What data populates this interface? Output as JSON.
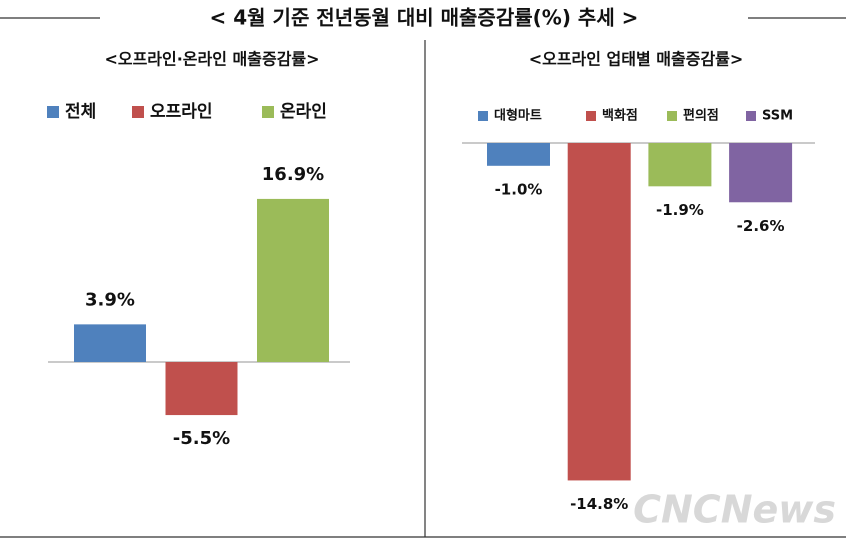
{
  "title": "< 4월 기준 전년동월 대비 매출증감률(%) 추세 >",
  "watermark": "CNCNews",
  "chart_data": [
    {
      "type": "bar",
      "title": "<오프라인·온라인 매출증감률>",
      "series": [
        {
          "name": "전체",
          "color": "#4f81bd",
          "values": [
            3.9
          ],
          "value_labels": [
            "3.9%"
          ]
        },
        {
          "name": "오프라인",
          "color": "#c0504d",
          "values": [
            -5.5
          ],
          "value_labels": [
            "-5.5%"
          ]
        },
        {
          "name": "온라인",
          "color": "#9bbb59",
          "values": [
            16.9
          ],
          "value_labels": [
            "16.9%"
          ]
        }
      ]
    },
    {
      "type": "bar",
      "title": "<오프라인 업태별 매출증감률>",
      "series": [
        {
          "name": "대형마트",
          "color": "#4f81bd",
          "values": [
            -1.0
          ],
          "value_labels": [
            "-1.0%"
          ]
        },
        {
          "name": "백화점",
          "color": "#c0504d",
          "values": [
            -14.8
          ],
          "value_labels": [
            "-14.8%"
          ]
        },
        {
          "name": "편의점",
          "color": "#9bbb59",
          "values": [
            -1.9
          ],
          "value_labels": [
            "-1.9%"
          ]
        },
        {
          "name": "SSM",
          "color": "#8064a2",
          "values": [
            -2.6
          ],
          "value_labels": [
            "-2.6%"
          ]
        }
      ]
    }
  ]
}
